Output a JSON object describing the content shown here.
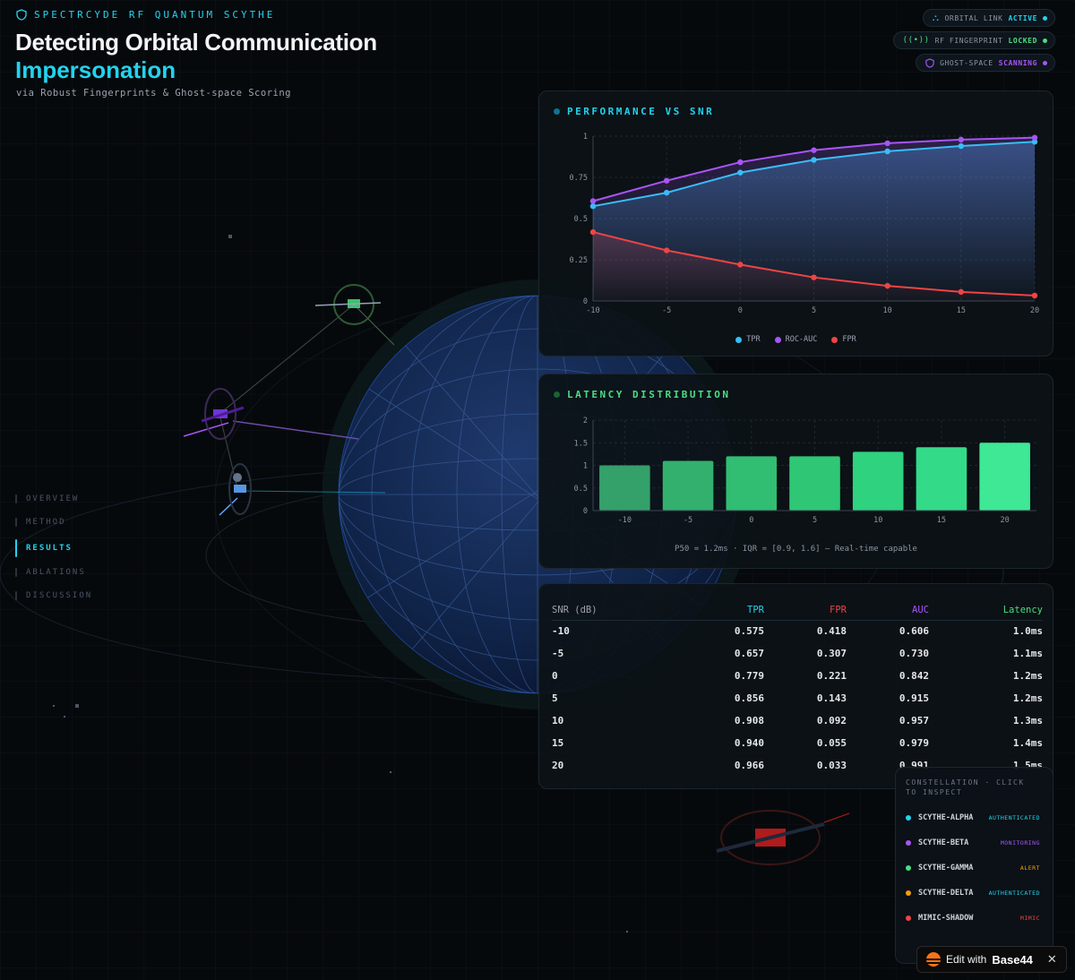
{
  "header": {
    "brand": "SPECTRCYDE RF QUANTUM SCYTHE",
    "title_line1": "Detecting Orbital Communication",
    "title_line2": "Impersonation",
    "subtitle": "via Robust Fingerprints & Ghost-space Scoring"
  },
  "status": [
    {
      "icon": "satellite-icon",
      "label": "ORBITAL LINK",
      "state": "ACTIVE",
      "color": "#22d3ee"
    },
    {
      "icon": "antenna-icon",
      "label": "RF FINGERPRINT",
      "state": "LOCKED",
      "color": "#4ade80"
    },
    {
      "icon": "shield-icon",
      "label": "GHOST-SPACE",
      "state": "SCANNING",
      "color": "#a855f7"
    }
  ],
  "nav": {
    "items": [
      "OVERVIEW",
      "METHOD",
      "RESULTS",
      "ABLATIONS",
      "DISCUSSION"
    ],
    "active": "RESULTS"
  },
  "performance": {
    "title": "PERFORMANCE VS SNR",
    "legend": [
      "TPR",
      "ROC-AUC",
      "FPR"
    ]
  },
  "latency": {
    "title": "LATENCY DISTRIBUTION",
    "caption": "P50 = 1.2ms · IQR = [0.9, 1.6] — Real-time capable"
  },
  "table": {
    "headers": [
      "SNR (dB)",
      "TPR",
      "FPR",
      "AUC",
      "Latency"
    ],
    "rows": [
      [
        "-10",
        "0.575",
        "0.418",
        "0.606",
        "1.0ms"
      ],
      [
        "-5",
        "0.657",
        "0.307",
        "0.730",
        "1.1ms"
      ],
      [
        "0",
        "0.779",
        "0.221",
        "0.842",
        "1.2ms"
      ],
      [
        "5",
        "0.856",
        "0.143",
        "0.915",
        "1.2ms"
      ],
      [
        "10",
        "0.908",
        "0.092",
        "0.957",
        "1.3ms"
      ],
      [
        "15",
        "0.940",
        "0.055",
        "0.979",
        "1.4ms"
      ],
      [
        "20",
        "0.966",
        "0.033",
        "0.991",
        "1.5ms"
      ]
    ]
  },
  "constellation": {
    "heading": "CONSTELLATION · CLICK TO INSPECT",
    "items": [
      {
        "name": "SCYTHE-ALPHA",
        "status": "AUTHENTICATED",
        "color": "#22d3ee",
        "status_color": "#22d3ee"
      },
      {
        "name": "SCYTHE-BETA",
        "status": "MONITORING",
        "color": "#a855f7",
        "status_color": "#a855f7"
      },
      {
        "name": "SCYTHE-GAMMA",
        "status": "ALERT",
        "color": "#4ade80",
        "status_color": "#f59e0b"
      },
      {
        "name": "SCYTHE-DELTA",
        "status": "AUTHENTICATED",
        "color": "#f59e0b",
        "status_color": "#22d3ee"
      },
      {
        "name": "MIMIC-SHADOW",
        "status": "MIMIC",
        "color": "#ef4444",
        "status_color": "#ef4444"
      }
    ]
  },
  "badge": {
    "prefix": "Edit with",
    "brand": "Base44",
    "close": "✕"
  },
  "colors": {
    "accent": "#22d3ee",
    "tpr": "#38bdf8",
    "auc": "#a855f7",
    "fpr": "#ef4444",
    "latency": "#4ade80"
  },
  "chart_data": [
    {
      "type": "line",
      "title": "PERFORMANCE VS SNR",
      "x": [
        -10,
        -5,
        0,
        5,
        10,
        15,
        20
      ],
      "series": [
        {
          "name": "TPR",
          "values": [
            0.575,
            0.657,
            0.779,
            0.856,
            0.908,
            0.94,
            0.966
          ],
          "color": "#38bdf8"
        },
        {
          "name": "ROC-AUC",
          "values": [
            0.606,
            0.73,
            0.842,
            0.915,
            0.957,
            0.979,
            0.991
          ],
          "color": "#a855f7"
        },
        {
          "name": "FPR",
          "values": [
            0.418,
            0.307,
            0.221,
            0.143,
            0.092,
            0.055,
            0.033
          ],
          "color": "#ef4444"
        }
      ],
      "xticks": [
        "-10",
        "-5",
        "0",
        "5",
        "10",
        "15",
        "20"
      ],
      "yticks": [
        "0",
        "0.25",
        "0.5",
        "0.75",
        "1"
      ],
      "ylim": [
        0,
        1
      ],
      "grid": true,
      "legend": "bottom"
    },
    {
      "type": "bar",
      "title": "LATENCY DISTRIBUTION",
      "categories": [
        "-10",
        "-5",
        "0",
        "5",
        "10",
        "15",
        "20"
      ],
      "values": [
        1.0,
        1.1,
        1.2,
        1.2,
        1.3,
        1.4,
        1.5
      ],
      "yticks": [
        "0",
        "0.5",
        "1",
        "1.5",
        "2"
      ],
      "ylim": [
        0,
        2
      ],
      "grid": true
    }
  ]
}
